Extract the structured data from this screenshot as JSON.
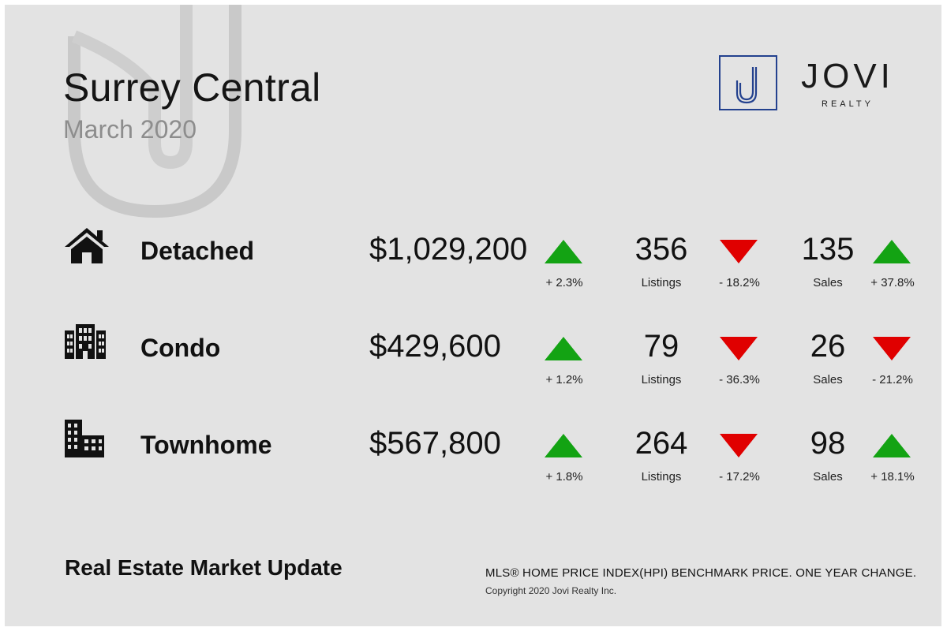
{
  "header": {
    "title": "Surrey Central",
    "subtitle": "March 2020"
  },
  "logo": {
    "name": "JOVI",
    "tagline": "REALTY",
    "brand_color": "#23418e"
  },
  "colors": {
    "up": "#13a313",
    "down": "#e00000",
    "background": "#e3e3e3"
  },
  "rows": [
    {
      "name": "Detached",
      "icon": "house-icon",
      "price": "$1,029,200",
      "price_change": "+ 2.3%",
      "price_trend": "up",
      "listings": "356",
      "listings_label": "Listings",
      "listings_change": "- 18.2%",
      "listings_trend": "down",
      "sales": "135",
      "sales_label": "Sales",
      "sales_change": "+ 37.8%",
      "sales_trend": "up"
    },
    {
      "name": "Condo",
      "icon": "condo-building-icon",
      "price": "$429,600",
      "price_change": "+ 1.2%",
      "price_trend": "up",
      "listings": "79",
      "listings_label": "Listings",
      "listings_change": "- 36.3%",
      "listings_trend": "down",
      "sales": "26",
      "sales_label": "Sales",
      "sales_change": "- 21.2%",
      "sales_trend": "down"
    },
    {
      "name": "Townhome",
      "icon": "townhome-building-icon",
      "price": "$567,800",
      "price_change": "+ 1.8%",
      "price_trend": "up",
      "listings": "264",
      "listings_label": "Listings",
      "listings_change": "- 17.2%",
      "listings_trend": "down",
      "sales": "98",
      "sales_label": "Sales",
      "sales_change": "+ 18.1%",
      "sales_trend": "up"
    }
  ],
  "footer": {
    "title": "Real Estate Market Update",
    "note": "MLS® HOME PRICE INDEX(HPI) BENCHMARK PRICE. ONE YEAR CHANGE.",
    "copyright": "Copyright 2020 Jovi Realty Inc."
  }
}
